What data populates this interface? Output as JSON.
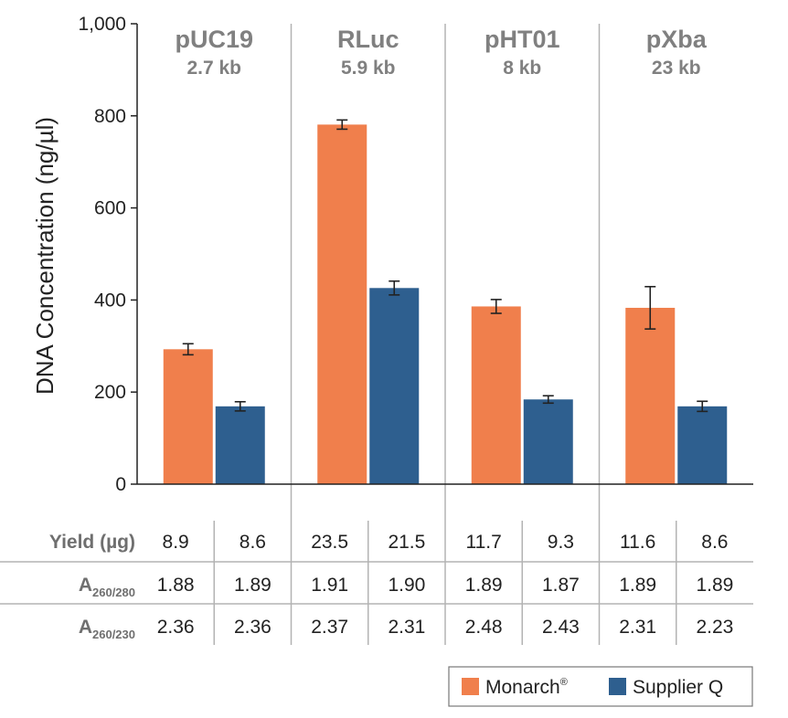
{
  "chart_data": {
    "type": "bar",
    "ylabel": "DNA Concentration (ng/µl)",
    "ylim": [
      0,
      1000
    ],
    "yticks": [
      0,
      200,
      400,
      600,
      800,
      1000
    ],
    "ytick_labels": [
      "0",
      "200",
      "400",
      "600",
      "800",
      "1,000"
    ],
    "grid": false,
    "legend_position": "bottom-right",
    "categories": [
      {
        "name": "pUC19",
        "size": "2.7 kb"
      },
      {
        "name": "RLuc",
        "size": "5.9 kb"
      },
      {
        "name": "pHT01",
        "size": "8 kb"
      },
      {
        "name": "pXba",
        "size": "23 kb"
      }
    ],
    "series": [
      {
        "name": "Monarch",
        "name_sup": "®",
        "color": "#f07f4c",
        "values": [
          293,
          781,
          386,
          383
        ],
        "errors": [
          12,
          10,
          15,
          46
        ]
      },
      {
        "name": "Supplier Q",
        "color": "#2e5f8f",
        "values": [
          169,
          426,
          184,
          169
        ],
        "errors": [
          10,
          15,
          8,
          11
        ]
      }
    ],
    "table": {
      "rows": [
        {
          "label": "Yield (µg)",
          "label_main": "",
          "label_sub": "",
          "values": [
            "8.9",
            "8.6",
            "23.5",
            "21.5",
            "11.7",
            "9.3",
            "11.6",
            "8.6"
          ]
        },
        {
          "label": "",
          "label_main": "A",
          "label_sub": "260/280",
          "values": [
            "1.88",
            "1.89",
            "1.91",
            "1.90",
            "1.89",
            "1.87",
            "1.89",
            "1.89"
          ]
        },
        {
          "label": "",
          "label_main": "A",
          "label_sub": "260/230",
          "values": [
            "2.36",
            "2.36",
            "2.37",
            "2.31",
            "2.48",
            "2.43",
            "2.31",
            "2.23"
          ]
        }
      ]
    }
  }
}
